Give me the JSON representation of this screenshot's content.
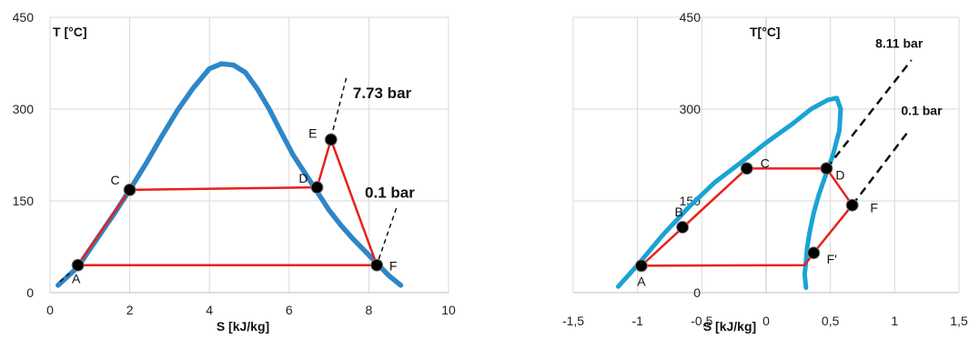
{
  "chart_data": [
    {
      "type": "line",
      "title": "",
      "xlabel": "S [kJ/kg]",
      "ylabel": "T [°C]",
      "xlim": [
        0,
        10
      ],
      "ylim": [
        0,
        450
      ],
      "xticks": [
        0,
        2,
        4,
        6,
        8,
        10
      ],
      "yticks": [
        0,
        150,
        300,
        450
      ],
      "xtick_labels": [
        "0",
        "2",
        "4",
        "6",
        "8",
        "10"
      ],
      "ytick_labels": [
        "0",
        "150",
        "300",
        "450"
      ],
      "grid": true,
      "legend": "none",
      "colors": {
        "dome": "#2e86c8",
        "cycle": "#e8201c",
        "isobar": "#111111",
        "marker": "#000000"
      },
      "series": [
        {
          "role": "saturation-dome",
          "x": [
            0.2,
            0.7,
            1.2,
            1.6,
            2.0,
            2.4,
            2.8,
            3.2,
            3.6,
            4.0,
            4.3,
            4.6,
            4.9,
            5.2,
            5.5,
            5.8,
            6.1,
            6.4,
            6.7,
            7.0,
            7.3,
            7.6,
            7.9,
            8.2,
            8.5,
            8.8
          ],
          "y": [
            12,
            42,
            90,
            128,
            168,
            210,
            255,
            298,
            335,
            366,
            374,
            372,
            360,
            333,
            300,
            262,
            225,
            195,
            165,
            135,
            110,
            88,
            68,
            48,
            28,
            12
          ]
        },
        {
          "role": "cycle",
          "x": [
            0.7,
            2.0,
            6.7,
            7.05,
            8.2,
            0.7
          ],
          "y": [
            45,
            168,
            172,
            250,
            45,
            45
          ]
        },
        {
          "role": "isobar-high",
          "x": [
            7.0,
            7.45
          ],
          "y": [
            240,
            355
          ]
        },
        {
          "role": "isobar-low",
          "x": [
            8.25,
            8.7
          ],
          "y": [
            55,
            140
          ]
        },
        {
          "role": "isobar-low",
          "x": [
            0.25,
            0.55
          ],
          "y": [
            18,
            35
          ]
        }
      ],
      "points": [
        {
          "label": "A",
          "x": 0.7,
          "y": 45
        },
        {
          "label": "C",
          "x": 2.0,
          "y": 168
        },
        {
          "label": "D",
          "x": 6.7,
          "y": 172
        },
        {
          "label": "E",
          "x": 7.05,
          "y": 250
        },
        {
          "label": "F",
          "x": 8.2,
          "y": 45
        }
      ],
      "annotations": [
        {
          "text": "7.73 bar",
          "x": 7.6,
          "y": 318
        },
        {
          "text": "0.1 bar",
          "x": 7.9,
          "y": 155
        }
      ]
    },
    {
      "type": "line",
      "title": "",
      "xlabel": "S [kJ/kg]",
      "ylabel": "T[°C]",
      "xlim": [
        -1.5,
        1.5
      ],
      "ylim": [
        0,
        450
      ],
      "xticks": [
        -1.5,
        -1,
        -0.5,
        0,
        0.5,
        1,
        1.5
      ],
      "yticks": [
        0,
        150,
        300,
        450
      ],
      "xtick_labels": [
        "-1,5",
        "-1",
        "-0,5",
        "0",
        "0,5",
        "1",
        "1,5"
      ],
      "ytick_labels": [
        "0",
        "150",
        "300",
        "450"
      ],
      "grid": true,
      "legend": "none",
      "colors": {
        "dome": "#1aa3d6",
        "cycle": "#e8201c",
        "isobar": "#111111",
        "marker": "#000000"
      },
      "series": [
        {
          "role": "saturation-dome",
          "x": [
            -1.15,
            -1.0,
            -0.8,
            -0.6,
            -0.4,
            -0.2,
            0.0,
            0.2,
            0.35,
            0.48,
            0.55,
            0.58,
            0.57,
            0.52,
            0.46,
            0.41,
            0.37,
            0.34,
            0.32,
            0.31,
            0.3,
            0.31
          ],
          "y": [
            10,
            45,
            95,
            140,
            180,
            212,
            245,
            275,
            300,
            315,
            318,
            300,
            265,
            225,
            190,
            160,
            130,
            100,
            75,
            50,
            30,
            8
          ]
        },
        {
          "role": "cycle",
          "x": [
            -0.97,
            -0.15,
            0.47,
            0.67,
            0.37,
            0.3,
            -0.97
          ],
          "y": [
            44,
            203,
            203,
            143,
            65,
            45,
            44
          ]
        },
        {
          "role": "isobar-high",
          "x": [
            0.47,
            1.13
          ],
          "y": [
            203,
            380
          ]
        },
        {
          "role": "isobar-low",
          "x": [
            0.67,
            1.1
          ],
          "y": [
            143,
            262
          ]
        }
      ],
      "points": [
        {
          "label": "A",
          "x": -0.97,
          "y": 44
        },
        {
          "label": "B",
          "x": -0.65,
          "y": 107
        },
        {
          "label": "C",
          "x": -0.15,
          "y": 203
        },
        {
          "label": "D",
          "x": 0.47,
          "y": 203
        },
        {
          "label": "F",
          "x": 0.67,
          "y": 143
        },
        {
          "label": "F'",
          "x": 0.37,
          "y": 65
        }
      ],
      "annotations": [
        {
          "text": "8.11 bar",
          "x": 0.85,
          "y": 400
        },
        {
          "text": "0.1 bar",
          "x": 1.05,
          "y": 290
        }
      ]
    }
  ]
}
